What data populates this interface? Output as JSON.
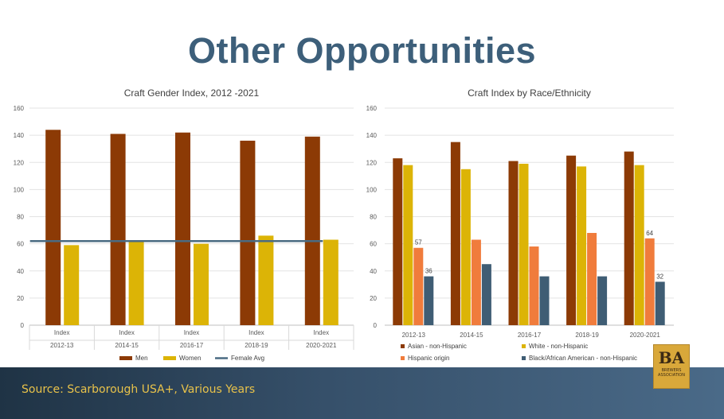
{
  "slide": {
    "title": "Other Opportunities",
    "source": "Source: Scarborough USA+, Various Years"
  },
  "logo": {
    "mark": "BA",
    "line1": "BREWERS",
    "line2": "ASSOCIATION"
  },
  "chart_data": [
    {
      "type": "bar",
      "title": "Craft Gender Index, 2012 -2021",
      "categories": [
        "2012-13",
        "2014-15",
        "2016-17",
        "2018-19",
        "2020-2021"
      ],
      "category_sublabel": "Index",
      "series": [
        {
          "name": "Men",
          "values": [
            144,
            141,
            142,
            136,
            139
          ],
          "color": "#8c3a05"
        },
        {
          "name": "Women",
          "values": [
            59,
            62,
            60,
            66,
            63
          ],
          "color": "#dcb406"
        }
      ],
      "reference_line": {
        "name": "Female Avg",
        "value": 62,
        "color": "#4a6b82"
      },
      "ylim": [
        0,
        160
      ],
      "yticks": [
        0,
        20,
        40,
        60,
        80,
        100,
        120,
        140,
        160
      ],
      "grid": true,
      "legend": "bottom"
    },
    {
      "type": "bar",
      "title": "Craft Index by Race/Ethnicity",
      "categories": [
        "2012-13",
        "2014-15",
        "2016-17",
        "2018-19",
        "2020-2021"
      ],
      "series": [
        {
          "name": "Asian - non-Hispanic",
          "values": [
            123,
            135,
            121,
            125,
            128
          ],
          "color": "#8c3a05"
        },
        {
          "name": "White - non-Hispanic",
          "values": [
            118,
            115,
            119,
            117,
            118
          ],
          "color": "#dcb406"
        },
        {
          "name": "Hispanic origin",
          "values": [
            57,
            63,
            58,
            68,
            64
          ],
          "color": "#f07c3c"
        },
        {
          "name": "Black/African American - non-Hispanic",
          "values": [
            36,
            45,
            36,
            36,
            32
          ],
          "color": "#3f5d74"
        }
      ],
      "data_labels": [
        {
          "series": 2,
          "index": 0,
          "text": "57"
        },
        {
          "series": 3,
          "index": 0,
          "text": "36"
        },
        {
          "series": 2,
          "index": 4,
          "text": "64"
        },
        {
          "series": 3,
          "index": 4,
          "text": "32"
        }
      ],
      "ylim": [
        0,
        160
      ],
      "yticks": [
        0,
        20,
        40,
        60,
        80,
        100,
        120,
        140,
        160
      ],
      "grid": true,
      "legend": "bottom"
    }
  ]
}
